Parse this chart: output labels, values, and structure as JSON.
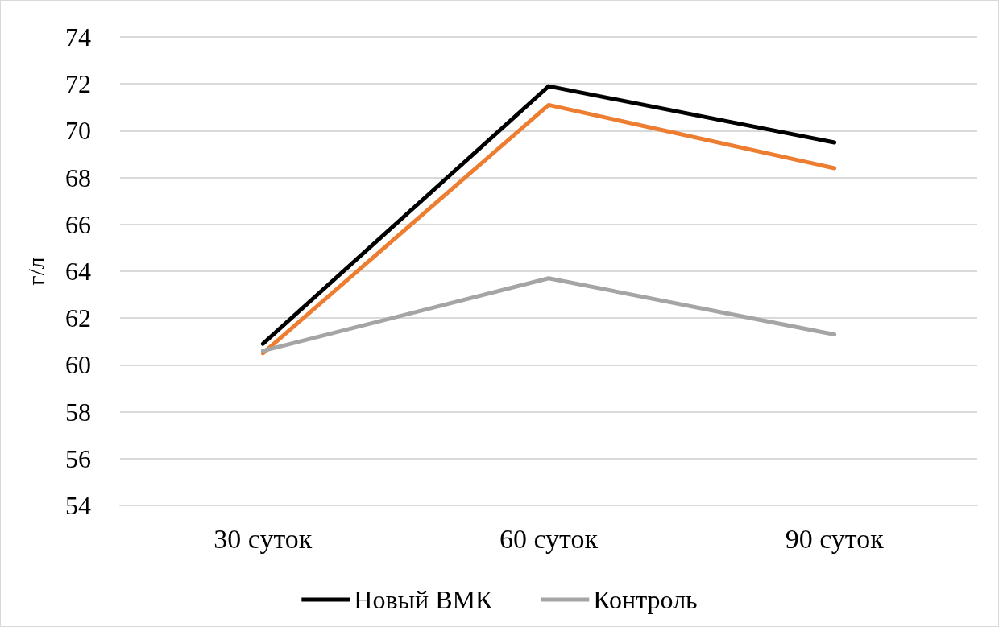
{
  "chart_data": {
    "type": "line",
    "ylabel": "г/л",
    "categories": [
      "30 суток",
      "60 суток",
      "90 суток"
    ],
    "series": [
      {
        "name": "Новый ВМК",
        "color": "#000000",
        "values": [
          60.9,
          71.9,
          69.5
        ]
      },
      {
        "color": "#ed7d31",
        "values": [
          60.5,
          71.1,
          68.4
        ]
      },
      {
        "name": "Контроль",
        "color": "#a5a5a5",
        "values": [
          60.6,
          63.7,
          61.3
        ]
      }
    ],
    "ylim": [
      54,
      74
    ],
    "yticks": [
      54,
      56,
      58,
      60,
      62,
      64,
      66,
      68,
      70,
      72,
      74
    ],
    "grid": "y",
    "legend": "bottom",
    "marker": "none",
    "line_style": "solid"
  }
}
